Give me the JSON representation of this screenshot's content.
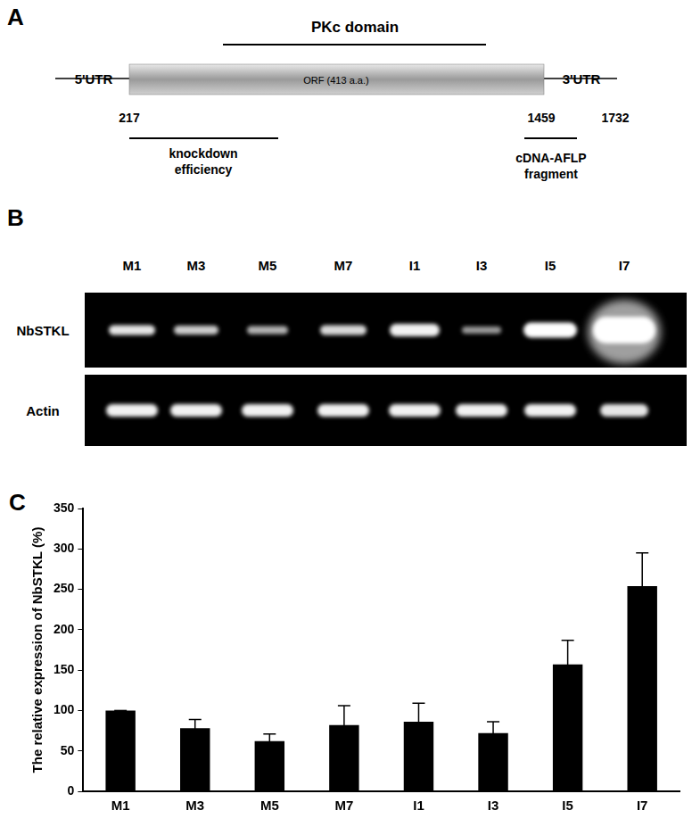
{
  "panel_a": {
    "label": "A",
    "domain": "PKc domain",
    "utr5": "5'UTR",
    "orf": "ORF (413 a.a.)",
    "utr3": "3'UTR",
    "positions": [
      217,
      1459,
      1732
    ],
    "knockdown": [
      "knockdown",
      "efficiency"
    ],
    "fragment": [
      "cDNA-AFLP",
      "fragment"
    ]
  },
  "panel_b": {
    "label": "B",
    "lanes": [
      "M1",
      "M3",
      "M5",
      "M7",
      "I1",
      "I3",
      "I5",
      "I7"
    ],
    "rows": [
      "NbSTKL",
      "Actin"
    ]
  },
  "panel_c": {
    "label": "C"
  },
  "chart_data": {
    "type": "bar",
    "ylabel": "The relative expression of NbSTKL (%)",
    "categories": [
      "M1",
      "M3",
      "M5",
      "M7",
      "I1",
      "I3",
      "I5",
      "I7"
    ],
    "values": [
      100,
      78,
      62,
      82,
      86,
      72,
      157,
      254
    ],
    "errors": [
      0,
      11,
      9,
      24,
      23,
      14,
      30,
      41
    ],
    "color": "#000000",
    "ylim": [
      0,
      350
    ],
    "yticks": [
      0,
      50,
      100,
      150,
      200,
      250,
      300,
      350
    ],
    "grid": false
  }
}
